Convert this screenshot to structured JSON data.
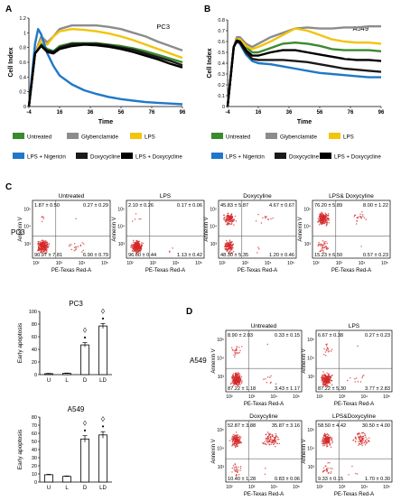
{
  "panel_letters": {
    "A": "A",
    "B": "B",
    "C": "C",
    "D": "D"
  },
  "legend": {
    "untreated": "Untreated",
    "glyb": "Glybenclamide",
    "lps": "LPS",
    "lps_nig": "LPS + Nigericin",
    "doxy": "Doxycycline",
    "lps_doxy": "LPS + Doxycycline"
  },
  "colors": {
    "untreated": "#3a8a2e",
    "glyb": "#8c8c8c",
    "lps": "#f2c40c",
    "lps_nig": "#1f78c8",
    "doxy": "#1a1a1a",
    "lps_doxy": "#000000",
    "facs_dot": "#d42a2a",
    "bar_fill": "#ffffff",
    "bar_edge": "#000000"
  },
  "chart_data": [
    {
      "type": "line",
      "title": "PC3",
      "xlabel": "Time",
      "ylabel": "Cell Index",
      "xticks": [
        "-4",
        "16",
        "36",
        "56",
        "76",
        "96"
      ],
      "yticks": [
        "0",
        "0.2",
        "0.4",
        "0.6",
        "0.8",
        "1",
        "1.2"
      ],
      "xlim": [
        -4,
        96
      ],
      "ylim": [
        0,
        1.2
      ],
      "series": [
        {
          "name": "Untreated",
          "key": "untreated",
          "x": [
            -4,
            0,
            4,
            8,
            12,
            16,
            24,
            32,
            40,
            48,
            56,
            64,
            72,
            80,
            88,
            96
          ],
          "y": [
            0,
            0.72,
            0.85,
            0.78,
            0.75,
            0.82,
            0.86,
            0.86,
            0.86,
            0.84,
            0.82,
            0.79,
            0.75,
            0.7,
            0.65,
            0.6
          ]
        },
        {
          "name": "Glybenclamide",
          "key": "glyb",
          "x": [
            -4,
            0,
            4,
            8,
            12,
            16,
            24,
            32,
            40,
            48,
            56,
            64,
            72,
            80,
            88,
            96
          ],
          "y": [
            0,
            0.72,
            0.95,
            0.87,
            0.95,
            1.05,
            1.1,
            1.1,
            1.1,
            1.08,
            1.05,
            1,
            0.95,
            0.88,
            0.82,
            0.76
          ]
        },
        {
          "name": "LPS",
          "key": "lps",
          "x": [
            -4,
            0,
            4,
            8,
            12,
            16,
            24,
            32,
            40,
            48,
            56,
            64,
            72,
            80,
            88,
            96
          ],
          "y": [
            0,
            0.72,
            0.9,
            0.84,
            0.95,
            1.02,
            1.05,
            1.04,
            1.02,
            0.99,
            0.95,
            0.9,
            0.84,
            0.78,
            0.72,
            0.66
          ]
        },
        {
          "name": "LPS + Nigericin",
          "key": "lps_nig",
          "x": [
            -4,
            0,
            2,
            4,
            8,
            12,
            16,
            24,
            32,
            40,
            48,
            56,
            64,
            72,
            80,
            88,
            96
          ],
          "y": [
            0,
            0.85,
            1.05,
            0.98,
            0.72,
            0.55,
            0.42,
            0.3,
            0.22,
            0.17,
            0.13,
            0.1,
            0.08,
            0.06,
            0.05,
            0.04,
            0.03
          ]
        },
        {
          "name": "Doxycycline",
          "key": "doxy",
          "x": [
            -4,
            0,
            4,
            8,
            12,
            16,
            24,
            32,
            40,
            48,
            56,
            64,
            72,
            80,
            88,
            96
          ],
          "y": [
            0,
            0.72,
            0.83,
            0.76,
            0.74,
            0.8,
            0.85,
            0.85,
            0.85,
            0.83,
            0.8,
            0.77,
            0.72,
            0.67,
            0.62,
            0.56
          ]
        },
        {
          "name": "LPS + Doxycycline",
          "key": "lps_doxy",
          "x": [
            -4,
            0,
            4,
            8,
            12,
            16,
            24,
            32,
            40,
            48,
            56,
            64,
            72,
            80,
            88,
            96
          ],
          "y": [
            0,
            0.72,
            0.82,
            0.74,
            0.72,
            0.78,
            0.82,
            0.84,
            0.83,
            0.81,
            0.78,
            0.74,
            0.69,
            0.64,
            0.58,
            0.53
          ]
        }
      ]
    },
    {
      "type": "line",
      "title": "A549",
      "xlabel": "Time",
      "ylabel": "Cell Index",
      "xticks": [
        "-4",
        "16",
        "36",
        "56",
        "76",
        "96"
      ],
      "yticks": [
        "0",
        "0.1",
        "0.2",
        "0.3",
        "0.4",
        "0.5",
        "0.6",
        "0.7",
        "0.8"
      ],
      "xlim": [
        -4,
        96
      ],
      "ylim": [
        0,
        0.8
      ],
      "series": [
        {
          "name": "Untreated",
          "key": "untreated",
          "x": [
            -4,
            0,
            2,
            4,
            8,
            12,
            16,
            24,
            32,
            40,
            48,
            56,
            64,
            72,
            80,
            88,
            96
          ],
          "y": [
            0,
            0.55,
            0.62,
            0.62,
            0.55,
            0.5,
            0.5,
            0.54,
            0.58,
            0.59,
            0.58,
            0.56,
            0.53,
            0.52,
            0.52,
            0.52,
            0.51
          ]
        },
        {
          "name": "Glybenclamide",
          "key": "glyb",
          "x": [
            -4,
            0,
            2,
            4,
            8,
            12,
            16,
            24,
            32,
            40,
            48,
            56,
            64,
            72,
            80,
            88,
            96
          ],
          "y": [
            0,
            0.55,
            0.64,
            0.64,
            0.58,
            0.55,
            0.58,
            0.64,
            0.68,
            0.72,
            0.73,
            0.72,
            0.72,
            0.73,
            0.73,
            0.74,
            0.74
          ]
        },
        {
          "name": "LPS",
          "key": "lps",
          "x": [
            -4,
            0,
            2,
            4,
            8,
            12,
            16,
            24,
            32,
            40,
            48,
            56,
            64,
            72,
            80,
            88,
            96
          ],
          "y": [
            0,
            0.55,
            0.62,
            0.62,
            0.56,
            0.53,
            0.55,
            0.6,
            0.66,
            0.72,
            0.7,
            0.66,
            0.62,
            0.6,
            0.59,
            0.59,
            0.58
          ]
        },
        {
          "name": "LPS + Nigericin",
          "key": "lps_nig",
          "x": [
            -4,
            0,
            2,
            4,
            8,
            12,
            16,
            24,
            32,
            40,
            48,
            56,
            64,
            72,
            80,
            88,
            96
          ],
          "y": [
            0,
            0.55,
            0.6,
            0.58,
            0.48,
            0.42,
            0.4,
            0.39,
            0.37,
            0.35,
            0.33,
            0.31,
            0.3,
            0.29,
            0.28,
            0.27,
            0.27
          ]
        },
        {
          "name": "Doxycycline",
          "key": "doxy",
          "x": [
            -4,
            0,
            2,
            4,
            8,
            12,
            16,
            24,
            32,
            40,
            48,
            56,
            64,
            72,
            80,
            88,
            96
          ],
          "y": [
            0,
            0.55,
            0.6,
            0.59,
            0.5,
            0.44,
            0.43,
            0.43,
            0.43,
            0.42,
            0.41,
            0.39,
            0.37,
            0.35,
            0.34,
            0.33,
            0.32
          ]
        },
        {
          "name": "LPS + Doxycycline",
          "key": "lps_doxy",
          "x": [
            -4,
            0,
            2,
            4,
            8,
            12,
            16,
            24,
            32,
            40,
            48,
            56,
            64,
            72,
            80,
            88,
            96
          ],
          "y": [
            0,
            0.55,
            0.61,
            0.6,
            0.52,
            0.47,
            0.47,
            0.5,
            0.52,
            0.52,
            0.5,
            0.48,
            0.46,
            0.44,
            0.43,
            0.43,
            0.42
          ]
        }
      ]
    },
    {
      "type": "bar",
      "title": "PC3",
      "ylabel": "Early apoptosis",
      "categories": [
        "U",
        "L",
        "D",
        "LD"
      ],
      "values": [
        1.5,
        2,
        47,
        77
      ],
      "errors": [
        0.5,
        0.5,
        3.5,
        4
      ],
      "yticks": [
        "0",
        "20",
        "40",
        "60",
        "80",
        "100"
      ],
      "ylim": [
        0,
        100
      ],
      "markers": [
        "",
        "",
        "◊\n•",
        "◊\n•"
      ]
    },
    {
      "type": "bar",
      "title": "A549",
      "ylabel": "Early apoptosis",
      "categories": [
        "U",
        "L",
        "D",
        "LD"
      ],
      "values": [
        9,
        7,
        53,
        58
      ],
      "errors": [
        0.5,
        0.5,
        4,
        4
      ],
      "yticks": [
        "0",
        "10",
        "20",
        "30",
        "40",
        "50",
        "60",
        "70",
        "80"
      ],
      "ylim": [
        0,
        80
      ],
      "markers": [
        "",
        "",
        "◊\n•",
        "◊\n•"
      ]
    }
  ],
  "facs": {
    "xlabel": "PE-Texas Red-A",
    "ylabel": "Annexin V",
    "row_pc3": "PC3",
    "row_a549": "A549",
    "ticks_x": [
      "10²",
      "10³",
      "10⁴",
      "10⁵"
    ],
    "ticks_y": [
      "10³",
      "10⁴",
      "10⁵"
    ],
    "pc3": [
      {
        "title": "Untreated",
        "q": [
          "1.87 ± 0.50",
          "0.27 ± 0.29",
          "90.97 ± 7.81",
          "6.90 ± 0.79"
        ]
      },
      {
        "title": "LPS",
        "q": [
          "2.10 ± 0.26",
          "0.17 ± 0.06",
          "96.60 ± 0.44",
          "1.13 ± 0.42"
        ]
      },
      {
        "title": "Doxycyline",
        "q": [
          "45.83 ± 5.87",
          "4.67 ± 0.67",
          "48.30 ± 5.35",
          "1.20 ± 0.46"
        ]
      },
      {
        "title": "LPS& Doxycyline",
        "q": [
          "76.20 ± 5.89",
          "8.00 ± 1.22",
          "15.23 ± 6.50",
          "0.57 ± 0.23"
        ]
      }
    ],
    "a549": [
      {
        "title": "Untreated",
        "q": [
          "8.90 ± 2.03",
          "0.33 ± 0.15",
          "87.22 ± 1.18",
          "3.43 ± 1.17"
        ]
      },
      {
        "title": "LPS",
        "q": [
          "6.67 ± 0.38",
          "0.27 ± 0.23",
          "87.22 ± 5.30",
          "3.77 ± 2.83"
        ]
      },
      {
        "title": "Doxycyline",
        "q": [
          "52.87 ± 3.88",
          "35.87 ± 3.16",
          "10.40 ± 1.28",
          "0.83 ± 0.06"
        ]
      },
      {
        "title": "LPS&Doxycyline",
        "q": [
          "58.50 ± 4.42",
          "30.50 ± 4.00",
          "9.33 ± 0.15",
          "1.70 ± 0.30"
        ]
      }
    ]
  }
}
